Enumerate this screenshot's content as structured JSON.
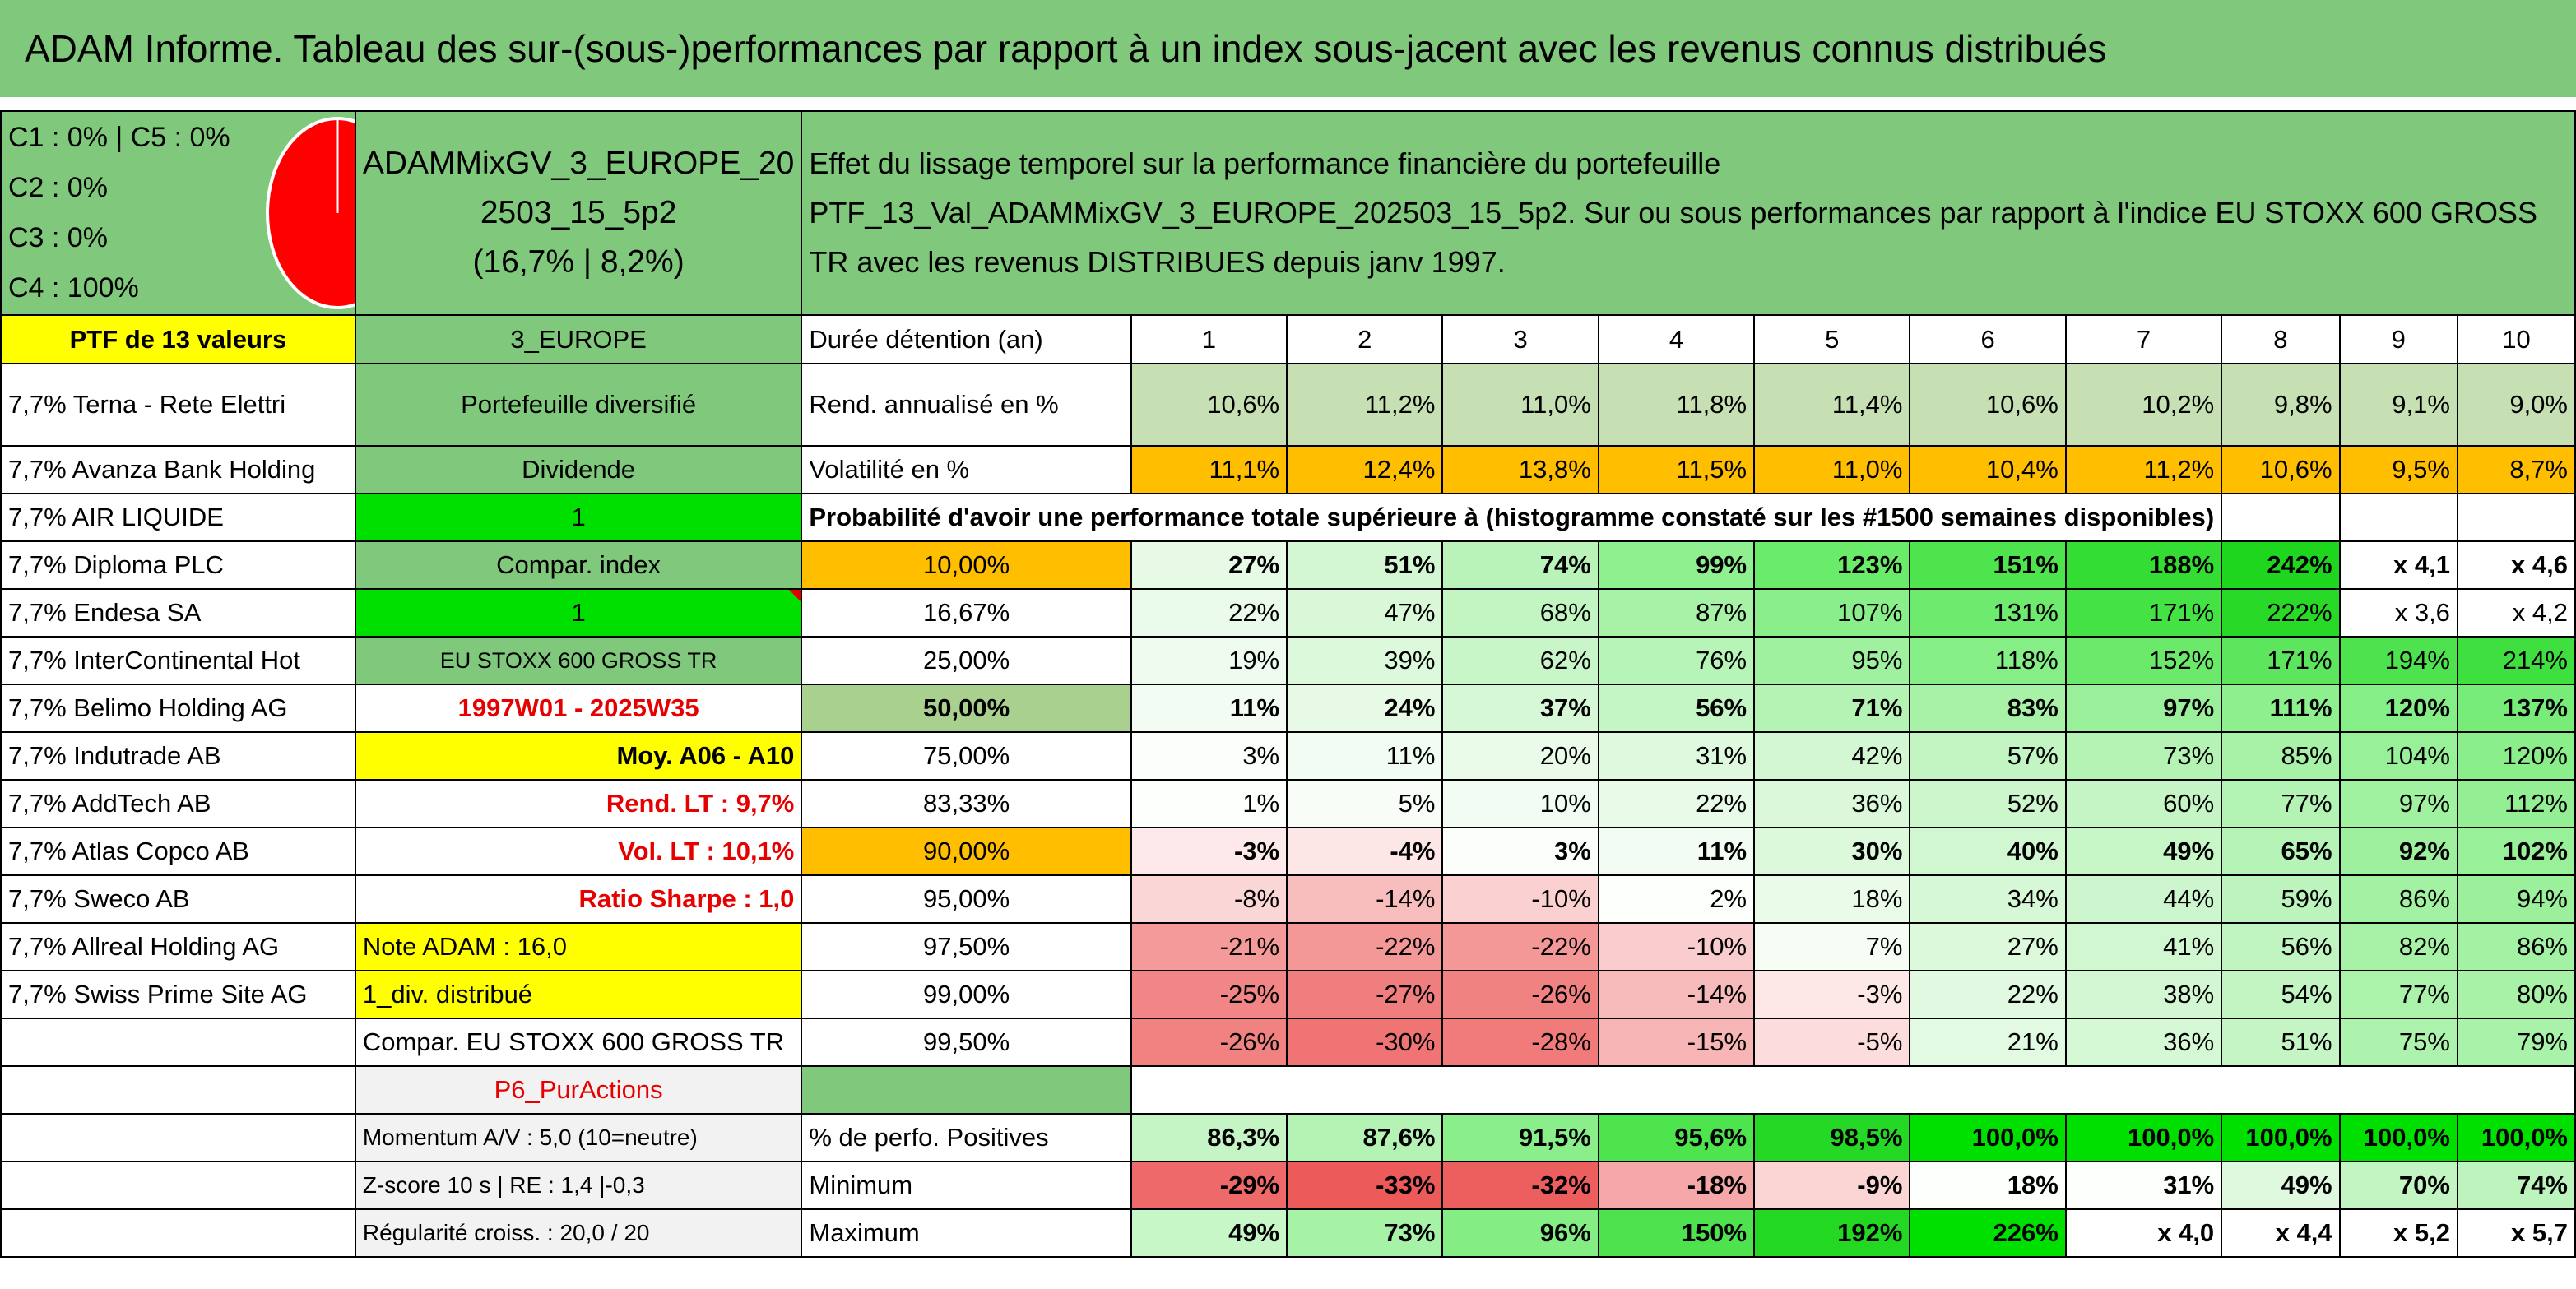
{
  "title": "ADAM Informe. Tableau des sur-(sous-)performances par rapport à un index sous-jacent avec les revenus connus distribués",
  "legend": [
    "C1 : 0% | C5 : 0%",
    "C2 : 0%",
    "C3 : 0%",
    "C4 : 100%"
  ],
  "fund_name_lines": [
    "ADAMMixGV_3_EUROPE_20",
    "2503_15_5p2",
    "(16,7% | 8,2%)"
  ],
  "description_lines": [
    "Effet du lissage temporel sur la performance financière du portefeuille",
    "PTF_13_Val_ADAMMixGV_3_EUROPE_202503_15_5p2. Sur ou sous performances par rapport à l'indice EU STOXX 600 GROSS",
    "TR avec les revenus DISTRIBUES depuis janv 1997."
  ],
  "ptf_label": "PTF de 13 valeurs",
  "region": "3_EUROPE",
  "duration_label": "Durée détention (an)",
  "years": [
    "1",
    "2",
    "3",
    "4",
    "5",
    "6",
    "7",
    "8",
    "9",
    "10"
  ],
  "holdings": [
    "7,7% Terna - Rete Elettri",
    "7,7% Avanza Bank Holding",
    "7,7% AIR LIQUIDE",
    "7,7% Diploma PLC",
    "7,7% Endesa SA",
    "7,7% InterContinental Hot",
    "7,7% Belimo Holding AG",
    "7,7% Indutrade AB",
    "7,7% AddTech AB",
    "7,7% Atlas Copco AB",
    "7,7% Sweco AB",
    "7,7% Allreal Holding AG",
    "7,7% Swiss Prime Site AG"
  ],
  "info": [
    "Portefeuille diversifié",
    "Dividende",
    "1",
    "Compar. index",
    "1",
    "EU STOXX 600 GROSS TR",
    "1997W01 - 2025W35",
    "Moy. A06 - A10",
    "Rend. LT : 9,7%",
    "Vol. LT : 10,1%",
    "Ratio Sharpe : 1,0",
    "Note ADAM : 16,0",
    "1_div. distribué",
    "Compar. EU STOXX 600 GROSS TR"
  ],
  "returns": {
    "label": "Rend. annualisé en %",
    "values": [
      "10,6%",
      "11,2%",
      "11,0%",
      "11,8%",
      "11,4%",
      "10,6%",
      "10,2%",
      "9,8%",
      "9,1%",
      "9,0%"
    ]
  },
  "volatility": {
    "label": "Volatilité en %",
    "values": [
      "11,1%",
      "12,4%",
      "13,8%",
      "11,5%",
      "11,0%",
      "10,4%",
      "11,2%",
      "10,6%",
      "9,5%",
      "8,7%"
    ]
  },
  "prob_header": "Probabilité d'avoir une performance totale supérieure à (histogramme constaté sur les #1500 semaines disponibles)",
  "prob_rows": [
    {
      "p": "10,00%",
      "v": [
        "27%",
        "51%",
        "74%",
        "99%",
        "123%",
        "151%",
        "188%",
        "242%",
        "x 4,1",
        "x 4,6"
      ]
    },
    {
      "p": "16,67%",
      "v": [
        "22%",
        "47%",
        "68%",
        "87%",
        "107%",
        "131%",
        "171%",
        "222%",
        "x 3,6",
        "x 4,2"
      ]
    },
    {
      "p": "25,00%",
      "v": [
        "19%",
        "39%",
        "62%",
        "76%",
        "95%",
        "118%",
        "152%",
        "171%",
        "194%",
        "214%"
      ]
    },
    {
      "p": "50,00%",
      "v": [
        "11%",
        "24%",
        "37%",
        "56%",
        "71%",
        "83%",
        "97%",
        "111%",
        "120%",
        "137%"
      ]
    },
    {
      "p": "75,00%",
      "v": [
        "3%",
        "11%",
        "20%",
        "31%",
        "42%",
        "57%",
        "73%",
        "85%",
        "104%",
        "120%"
      ]
    },
    {
      "p": "83,33%",
      "v": [
        "1%",
        "5%",
        "10%",
        "22%",
        "36%",
        "52%",
        "60%",
        "77%",
        "97%",
        "112%"
      ]
    },
    {
      "p": "90,00%",
      "v": [
        "-3%",
        "-4%",
        "3%",
        "11%",
        "30%",
        "40%",
        "49%",
        "65%",
        "92%",
        "102%"
      ]
    },
    {
      "p": "95,00%",
      "v": [
        "-8%",
        "-14%",
        "-10%",
        "2%",
        "18%",
        "34%",
        "44%",
        "59%",
        "86%",
        "94%"
      ]
    },
    {
      "p": "97,50%",
      "v": [
        "-21%",
        "-22%",
        "-22%",
        "-10%",
        "7%",
        "27%",
        "41%",
        "56%",
        "82%",
        "86%"
      ]
    },
    {
      "p": "99,00%",
      "v": [
        "-25%",
        "-27%",
        "-26%",
        "-14%",
        "-3%",
        "22%",
        "38%",
        "54%",
        "77%",
        "80%"
      ]
    },
    {
      "p": "99,50%",
      "v": [
        "-26%",
        "-30%",
        "-28%",
        "-15%",
        "-5%",
        "21%",
        "36%",
        "51%",
        "75%",
        "79%"
      ]
    }
  ],
  "p6": "P6_PurActions",
  "stats_labels": [
    "Momentum A/V : 5,0 (10=neutre)",
    "Z-score 10 s | RE : 1,4 |-0,3",
    "Régularité croiss. : 20,0 / 20"
  ],
  "positive": {
    "label": "% de perfo. Positives",
    "values": [
      "86,3%",
      "87,6%",
      "91,5%",
      "95,6%",
      "98,5%",
      "100,0%",
      "100,0%",
      "100,0%",
      "100,0%",
      "100,0%"
    ]
  },
  "minimum": {
    "label": "Minimum",
    "values": [
      "-29%",
      "-33%",
      "-32%",
      "-18%",
      "-9%",
      "18%",
      "31%",
      "49%",
      "70%",
      "74%"
    ]
  },
  "maximum": {
    "label": "Maximum",
    "values": [
      "49%",
      "73%",
      "96%",
      "150%",
      "192%",
      "226%",
      "x 4,0",
      "x 4,4",
      "x 5,2",
      "x 5,7"
    ]
  },
  "colors": {
    "header_green": "#80c87c",
    "yellow": "#ffff00",
    "orange": "#ffbf00",
    "bright_green": "#00e000",
    "pie_red": "#ff0000"
  }
}
